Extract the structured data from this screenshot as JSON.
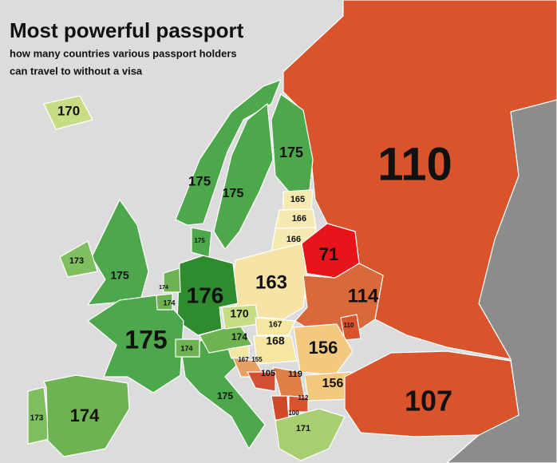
{
  "header": {
    "title": "Most powerful passport",
    "subtitle": [
      "how many countries various passport holders",
      "can travel to without a visa"
    ]
  },
  "regions": [
    {
      "value": 110,
      "color": "#d9542b"
    },
    {
      "value": 175,
      "color": "#4ca84a"
    },
    {
      "value": 175,
      "color": "#4ca84a"
    },
    {
      "value": 175,
      "color": "#4ca84a"
    },
    {
      "value": 165,
      "color": "#f7eab0"
    },
    {
      "value": 166,
      "color": "#f7eab0"
    },
    {
      "value": 166,
      "color": "#f7eab0"
    },
    {
      "value": 71,
      "color": "#e8141a"
    },
    {
      "value": 163,
      "color": "#f6e3a6"
    },
    {
      "value": 114,
      "color": "#d9683a"
    },
    {
      "value": 110,
      "color": "#d9542b"
    },
    {
      "value": 176,
      "color": "#2e8b2e"
    },
    {
      "value": 175,
      "color": "#4ca84a"
    },
    {
      "value": 174,
      "color": "#6db352"
    },
    {
      "value": 175,
      "color": "#4ca84a"
    },
    {
      "value": 173,
      "color": "#7fbf5f"
    },
    {
      "value": 170,
      "color": "#c7dd84"
    },
    {
      "value": 175,
      "color": "#4ca84a"
    },
    {
      "value": 174,
      "color": "#6db352"
    },
    {
      "value": 173,
      "color": "#7fbf5f"
    },
    {
      "value": 174,
      "color": "#6db352"
    },
    {
      "value": 175,
      "color": "#4ca84a"
    },
    {
      "value": 174,
      "color": "#6db352"
    },
    {
      "value": 174,
      "color": "#6db352"
    },
    {
      "value": 170,
      "color": "#c7dd84"
    },
    {
      "value": 167,
      "color": "#f3e7a2"
    },
    {
      "value": 168,
      "color": "#f3e7a2"
    },
    {
      "value": 167,
      "color": "#f3e7a2"
    },
    {
      "value": 155,
      "color": "#e8a062"
    },
    {
      "value": 156,
      "color": "#f2c97f"
    },
    {
      "value": 119,
      "color": "#e07f45"
    },
    {
      "value": 105,
      "color": "#d35032"
    },
    {
      "value": 156,
      "color": "#f2c97f"
    },
    {
      "value": 112,
      "color": "#d9542b"
    },
    {
      "value": 100,
      "color": "#d04a2a"
    },
    {
      "value": 171,
      "color": "#a8cf6f"
    },
    {
      "value": 107,
      "color": "#d9542b"
    }
  ]
}
